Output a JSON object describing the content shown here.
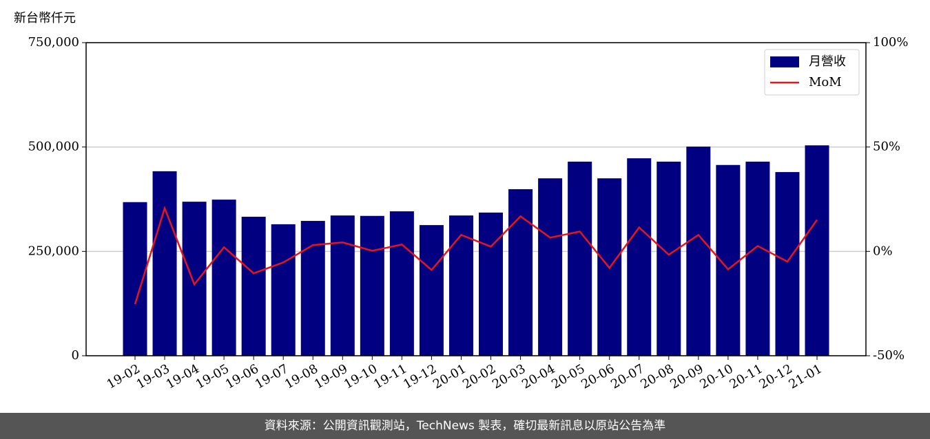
{
  "chart_data": {
    "type": "bar_line",
    "y_label": "新台幣仟元",
    "source": "資料來源：公開資訊觀測站，TechNews 製表，確切最新訊息以原站公告為準",
    "categories": [
      "19-02",
      "19-03",
      "19-04",
      "19-05",
      "19-06",
      "19-07",
      "19-08",
      "19-09",
      "19-10",
      "19-11",
      "19-12",
      "20-01",
      "20-02",
      "20-03",
      "20-04",
      "20-05",
      "20-06",
      "20-07",
      "20-08",
      "20-09",
      "20-10",
      "20-11",
      "20-12",
      "21-01"
    ],
    "series": [
      {
        "name": "月營收",
        "type": "bar",
        "color": "#000080",
        "values": [
          368000,
          442000,
          369000,
          374000,
          333000,
          315000,
          323000,
          336000,
          335000,
          346000,
          313000,
          336000,
          343000,
          399000,
          425000,
          465000,
          425000,
          473000,
          465000,
          501000,
          457000,
          465000,
          440000,
          504000
        ]
      },
      {
        "name": "MoM",
        "type": "line",
        "axis": "y2",
        "color": "#e8141c",
        "values": [
          -25.3,
          20.7,
          -15.8,
          2.0,
          -10.5,
          -5.3,
          3.0,
          4.3,
          0.3,
          3.3,
          -8.9,
          7.9,
          2.3,
          16.8,
          6.6,
          9.5,
          -7.9,
          11.5,
          -1.6,
          7.9,
          -8.6,
          2.6,
          -4.9,
          15.1
        ]
      }
    ],
    "ylim": [
      0,
      750000
    ],
    "yticks": [
      {
        "value": 0,
        "label": "0"
      },
      {
        "value": 250000,
        "label": "250,000"
      },
      {
        "value": 500000,
        "label": "500,000"
      },
      {
        "value": 750000,
        "label": "750,000"
      }
    ],
    "y2lim": [
      -50,
      100
    ],
    "y2ticks": [
      {
        "value": -50,
        "label": "-50%"
      },
      {
        "value": 0,
        "label": "0%"
      },
      {
        "value": 50,
        "label": "50%"
      },
      {
        "value": 100,
        "label": "100%"
      }
    ],
    "grid": true,
    "legend": "upper right"
  }
}
